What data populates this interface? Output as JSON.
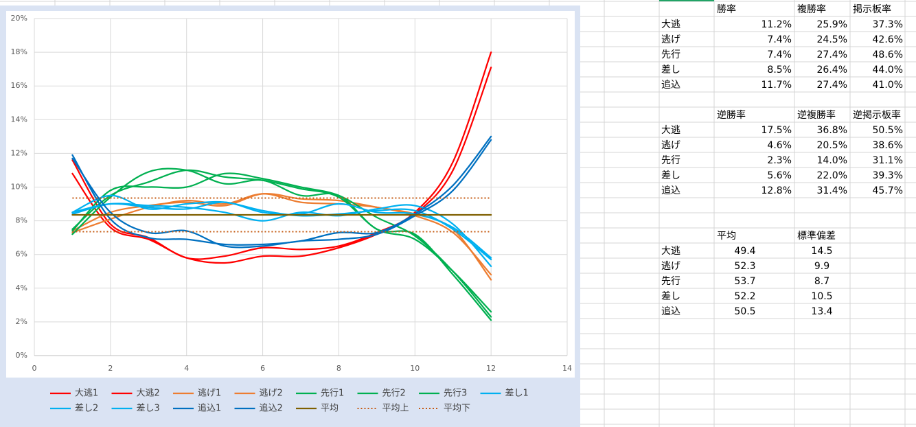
{
  "chart_data": {
    "type": "line",
    "xlim": [
      0,
      14
    ],
    "xticks": [
      0,
      2,
      4,
      6,
      8,
      10,
      12,
      14
    ],
    "ylim": [
      0,
      20
    ],
    "yticks": [
      {
        "value": 0,
        "label": "0%"
      },
      {
        "value": 2,
        "label": "2%"
      },
      {
        "value": 4,
        "label": "4%"
      },
      {
        "value": 6,
        "label": "6%"
      },
      {
        "value": 8,
        "label": "8%"
      },
      {
        "value": 10,
        "label": "10%"
      },
      {
        "value": 12,
        "label": "12%"
      },
      {
        "value": 14,
        "label": "14%"
      },
      {
        "value": 16,
        "label": "16%"
      },
      {
        "value": 18,
        "label": "18%"
      },
      {
        "value": 20,
        "label": "20%"
      }
    ],
    "grid": true,
    "x": [
      1,
      2,
      3,
      4,
      5,
      6,
      7,
      8,
      9,
      10,
      11,
      12
    ],
    "series": [
      {
        "name": "大逃1",
        "color": "#ff0000",
        "values": [
          11.6,
          7.8,
          7.0,
          5.8,
          5.9,
          6.4,
          6.3,
          6.5,
          7.3,
          8.5,
          11.5,
          18.0
        ]
      },
      {
        "name": "大逃2",
        "color": "#ff0000",
        "values": [
          10.8,
          7.6,
          6.9,
          5.8,
          5.5,
          5.9,
          5.9,
          6.4,
          7.2,
          8.4,
          11.0,
          17.1
        ]
      },
      {
        "name": "逃げ1",
        "color": "#ed7d31",
        "values": [
          7.4,
          8.5,
          8.9,
          9.1,
          8.9,
          9.6,
          9.3,
          9.2,
          8.8,
          8.4,
          7.5,
          4.5
        ]
      },
      {
        "name": "逃げ2",
        "color": "#ed7d31",
        "values": [
          7.3,
          8.1,
          8.8,
          9.2,
          9.0,
          9.6,
          9.1,
          9.0,
          8.8,
          8.3,
          7.3,
          4.8
        ]
      },
      {
        "name": "先行1",
        "color": "#00b050",
        "values": [
          7.5,
          9.5,
          10.3,
          11.0,
          10.6,
          10.4,
          9.9,
          9.4,
          7.5,
          6.9,
          5.0,
          2.6
        ]
      },
      {
        "name": "先行2",
        "color": "#00b050",
        "values": [
          7.2,
          9.4,
          10.9,
          11.0,
          10.2,
          10.4,
          9.5,
          9.5,
          7.5,
          7.2,
          4.8,
          2.1
        ]
      },
      {
        "name": "先行3",
        "color": "#00b050",
        "values": [
          7.4,
          9.8,
          10.0,
          10.0,
          10.8,
          10.5,
          10.0,
          9.5,
          8.2,
          7.1,
          5.0,
          2.3
        ]
      },
      {
        "name": "差し1",
        "color": "#00b0f0",
        "values": [
          8.5,
          9.0,
          8.8,
          8.7,
          9.1,
          8.5,
          8.4,
          9.0,
          8.5,
          8.4,
          7.6,
          5.8
        ]
      },
      {
        "name": "差し2",
        "color": "#00b0f0",
        "values": [
          8.4,
          9.0,
          8.9,
          8.8,
          8.5,
          8.0,
          8.5,
          8.3,
          8.7,
          8.9,
          7.8,
          5.3
        ]
      },
      {
        "name": "差し3",
        "color": "#00b0f0",
        "values": [
          8.5,
          9.5,
          8.7,
          9.0,
          9.1,
          8.6,
          8.3,
          8.4,
          8.6,
          8.6,
          7.5,
          5.7
        ]
      },
      {
        "name": "追込1",
        "color": "#0070c0",
        "values": [
          11.7,
          8.5,
          7.3,
          7.4,
          6.5,
          6.5,
          6.8,
          6.9,
          7.2,
          8.3,
          9.8,
          12.8
        ]
      },
      {
        "name": "追込2",
        "color": "#0070c0",
        "values": [
          11.9,
          8.1,
          7.0,
          6.9,
          6.6,
          6.6,
          6.8,
          7.3,
          7.3,
          8.4,
          10.1,
          13.0
        ]
      },
      {
        "name": "平均",
        "color": "#7f6000",
        "values": [
          8.35,
          8.35,
          8.35,
          8.35,
          8.35,
          8.35,
          8.35,
          8.35,
          8.35,
          8.35,
          8.35,
          8.35
        ]
      },
      {
        "name": "平均上",
        "color": "#c55a11",
        "line_style": "dotted",
        "values": [
          9.35,
          9.35,
          9.35,
          9.35,
          9.35,
          9.35,
          9.35,
          9.35,
          9.35,
          9.35,
          9.35,
          9.35
        ]
      },
      {
        "name": "平均下",
        "color": "#c55a11",
        "line_style": "dotted",
        "values": [
          7.35,
          7.35,
          7.35,
          7.35,
          7.35,
          7.35,
          7.35,
          7.35,
          7.35,
          7.35,
          7.35,
          7.35
        ]
      }
    ]
  },
  "tables": [
    {
      "headers": [
        "勝率",
        "複勝率",
        "掲示板率"
      ],
      "rows": [
        [
          "大逃",
          "11.2%",
          "25.9%",
          "37.3%"
        ],
        [
          "逃げ",
          "7.4%",
          "24.5%",
          "42.6%"
        ],
        [
          "先行",
          "7.4%",
          "27.4%",
          "48.6%"
        ],
        [
          "差し",
          "8.5%",
          "26.4%",
          "44.0%"
        ],
        [
          "追込",
          "11.7%",
          "27.4%",
          "41.0%"
        ]
      ]
    },
    {
      "headers": [
        "逆勝率",
        "逆複勝率",
        "逆掲示板率"
      ],
      "rows": [
        [
          "大逃",
          "17.5%",
          "36.8%",
          "50.5%"
        ],
        [
          "逃げ",
          "4.6%",
          "20.5%",
          "38.6%"
        ],
        [
          "先行",
          "2.3%",
          "14.0%",
          "31.1%"
        ],
        [
          "差し",
          "5.6%",
          "22.0%",
          "39.3%"
        ],
        [
          "追込",
          "12.8%",
          "31.4%",
          "45.7%"
        ]
      ]
    },
    {
      "headers": [
        "平均",
        "標準偏差"
      ],
      "rows": [
        [
          "大逃",
          "49.4",
          "14.5"
        ],
        [
          "逃げ",
          "52.3",
          "9.9"
        ],
        [
          "先行",
          "53.7",
          "8.7"
        ],
        [
          "差し",
          "52.2",
          "10.5"
        ],
        [
          "追込",
          "50.5",
          "13.4"
        ]
      ]
    }
  ]
}
